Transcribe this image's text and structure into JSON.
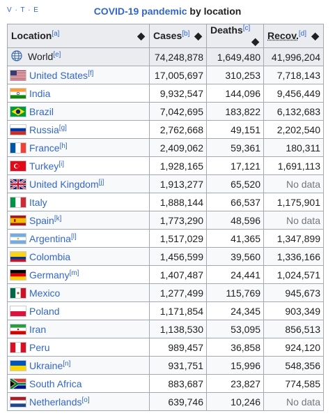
{
  "navbox": {
    "v": "V",
    "t": "T",
    "e": "E",
    "sep": "·"
  },
  "caption": {
    "link": "COVID-19 pandemic",
    "rest": " by location"
  },
  "headers": [
    {
      "label": "Location",
      "note": "[a]"
    },
    {
      "label": "Cases",
      "note": "[b]"
    },
    {
      "label": "Deaths",
      "note": "[c]"
    },
    {
      "label": "Recov.",
      "note": "[d]"
    }
  ],
  "sort_icon": "sort-icon",
  "rows": [
    {
      "location": "World",
      "note": "[e]",
      "flag": "world",
      "cases": "74,248,878",
      "deaths": "1,649,480",
      "recovered": "41,996,204"
    },
    {
      "location": "United States",
      "note": "[f]",
      "flag": "us",
      "cases": "17,005,697",
      "deaths": "310,253",
      "recovered": "7,718,143"
    },
    {
      "location": "India",
      "note": "",
      "flag": "in",
      "cases": "9,932,547",
      "deaths": "144,096",
      "recovered": "9,456,449"
    },
    {
      "location": "Brazil",
      "note": "",
      "flag": "br",
      "cases": "7,042,695",
      "deaths": "183,822",
      "recovered": "6,132,683"
    },
    {
      "location": "Russia",
      "note": "[g]",
      "flag": "ru",
      "cases": "2,762,668",
      "deaths": "49,151",
      "recovered": "2,202,540"
    },
    {
      "location": "France",
      "note": "[h]",
      "flag": "fr",
      "cases": "2,409,062",
      "deaths": "59,361",
      "recovered": "180,311"
    },
    {
      "location": "Turkey",
      "note": "[i]",
      "flag": "tr",
      "cases": "1,928,165",
      "deaths": "17,121",
      "recovered": "1,691,113"
    },
    {
      "location": "United Kingdom",
      "note": "[j]",
      "flag": "gb",
      "cases": "1,913,277",
      "deaths": "65,520",
      "recovered": "No data"
    },
    {
      "location": "Italy",
      "note": "",
      "flag": "it",
      "cases": "1,888,144",
      "deaths": "66,537",
      "recovered": "1,175,901"
    },
    {
      "location": "Spain",
      "note": "[k]",
      "flag": "es",
      "cases": "1,773,290",
      "deaths": "48,596",
      "recovered": "No data"
    },
    {
      "location": "Argentina",
      "note": "[l]",
      "flag": "ar",
      "cases": "1,517,029",
      "deaths": "41,365",
      "recovered": "1,347,899"
    },
    {
      "location": "Colombia",
      "note": "",
      "flag": "co",
      "cases": "1,456,599",
      "deaths": "39,560",
      "recovered": "1,336,166"
    },
    {
      "location": "Germany",
      "note": "[m]",
      "flag": "de",
      "cases": "1,407,487",
      "deaths": "24,441",
      "recovered": "1,024,571"
    },
    {
      "location": "Mexico",
      "note": "",
      "flag": "mx",
      "cases": "1,277,499",
      "deaths": "115,769",
      "recovered": "945,673"
    },
    {
      "location": "Poland",
      "note": "",
      "flag": "pl",
      "cases": "1,171,854",
      "deaths": "24,345",
      "recovered": "903,349"
    },
    {
      "location": "Iran",
      "note": "",
      "flag": "ir",
      "cases": "1,138,530",
      "deaths": "53,095",
      "recovered": "856,513"
    },
    {
      "location": "Peru",
      "note": "",
      "flag": "pe",
      "cases": "989,457",
      "deaths": "36,858",
      "recovered": "924,120"
    },
    {
      "location": "Ukraine",
      "note": "[n]",
      "flag": "ua",
      "cases": "931,751",
      "deaths": "15,996",
      "recovered": "548,356"
    },
    {
      "location": "South Africa",
      "note": "",
      "flag": "za",
      "cases": "883,687",
      "deaths": "23,827",
      "recovered": "774,585"
    },
    {
      "location": "Netherlands",
      "note": "[o]",
      "flag": "nl",
      "cases": "639,746",
      "deaths": "10,246",
      "recovered": "No data"
    }
  ],
  "colors": {
    "link": "#3366cc",
    "header_bg": "#eaecf0",
    "border": "#a2a9b1",
    "nodata": "#72777d"
  }
}
